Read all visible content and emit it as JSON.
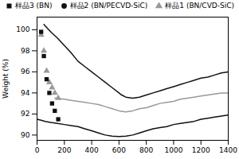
{
  "chart_data": {
    "type": "line",
    "ylabel": "Weight (%)",
    "xlim": [
      0,
      1400
    ],
    "ylim": [
      89.5,
      101.2
    ],
    "xticks": [
      0,
      200,
      400,
      600,
      800,
      1000,
      1200,
      1400
    ],
    "yticks": [
      90,
      92,
      94,
      96,
      98,
      100
    ],
    "grid": false,
    "series": [
      {
        "name": "样品3 (BN)",
        "color": "#111111",
        "marker": "square",
        "x": [
          50,
          100,
          150,
          200,
          250,
          300,
          350,
          400,
          450,
          500,
          550,
          600,
          620,
          650,
          700,
          750,
          800,
          850,
          900,
          950,
          1000,
          1050,
          1100,
          1150,
          1200,
          1250,
          1300,
          1350,
          1400
        ],
        "values": [
          100.5,
          99.8,
          99.2,
          98.5,
          97.8,
          97.0,
          96.5,
          96.0,
          95.5,
          95.0,
          94.5,
          94.0,
          93.8,
          93.6,
          93.5,
          93.6,
          93.8,
          94.0,
          94.2,
          94.4,
          94.6,
          94.8,
          95.0,
          95.2,
          95.4,
          95.5,
          95.7,
          95.9,
          96.0
        ],
        "scatter_x": [
          30,
          50,
          70,
          90,
          110,
          130,
          155
        ],
        "scatter_values": [
          99.8,
          97.5,
          95.3,
          94.0,
          93.0,
          92.3,
          91.5
        ]
      },
      {
        "name": "样品2 (BN/PECVD-SiC)",
        "color": "#111111",
        "marker": "circle",
        "x": [
          0,
          30,
          60,
          100,
          150,
          200,
          250,
          300,
          350,
          400,
          450,
          500,
          550,
          600,
          650,
          700,
          750,
          800,
          850,
          900,
          950,
          1000,
          1050,
          1100,
          1150,
          1200,
          1250,
          1300,
          1350,
          1400
        ],
        "values": [
          91.5,
          91.4,
          91.3,
          91.2,
          91.1,
          91.0,
          90.9,
          90.8,
          90.6,
          90.4,
          90.2,
          90.0,
          89.9,
          89.85,
          89.9,
          90.0,
          90.2,
          90.4,
          90.6,
          90.7,
          90.8,
          91.0,
          91.1,
          91.2,
          91.3,
          91.5,
          91.6,
          91.7,
          91.8,
          91.9
        ]
      },
      {
        "name": "样品1 (BN/CVD-SiC)",
        "color": "#999999",
        "marker": "triangle",
        "x": [
          130,
          200,
          250,
          300,
          350,
          400,
          450,
          500,
          550,
          600,
          650,
          700,
          750,
          800,
          850,
          900,
          950,
          1000,
          1050,
          1100,
          1150,
          1200,
          1250,
          1300,
          1350,
          1400
        ],
        "values": [
          93.5,
          93.4,
          93.3,
          93.2,
          93.1,
          93.0,
          92.9,
          92.7,
          92.5,
          92.3,
          92.2,
          92.3,
          92.5,
          92.6,
          92.8,
          93.0,
          93.1,
          93.2,
          93.4,
          93.5,
          93.6,
          93.7,
          93.8,
          93.9,
          94.0,
          94.0
        ],
        "scatter_x": [
          30,
          50,
          70,
          90,
          110,
          130,
          155
        ],
        "scatter_values": [
          99.5,
          98.0,
          96.1,
          95.0,
          94.5,
          94.0,
          93.5
        ]
      }
    ]
  }
}
